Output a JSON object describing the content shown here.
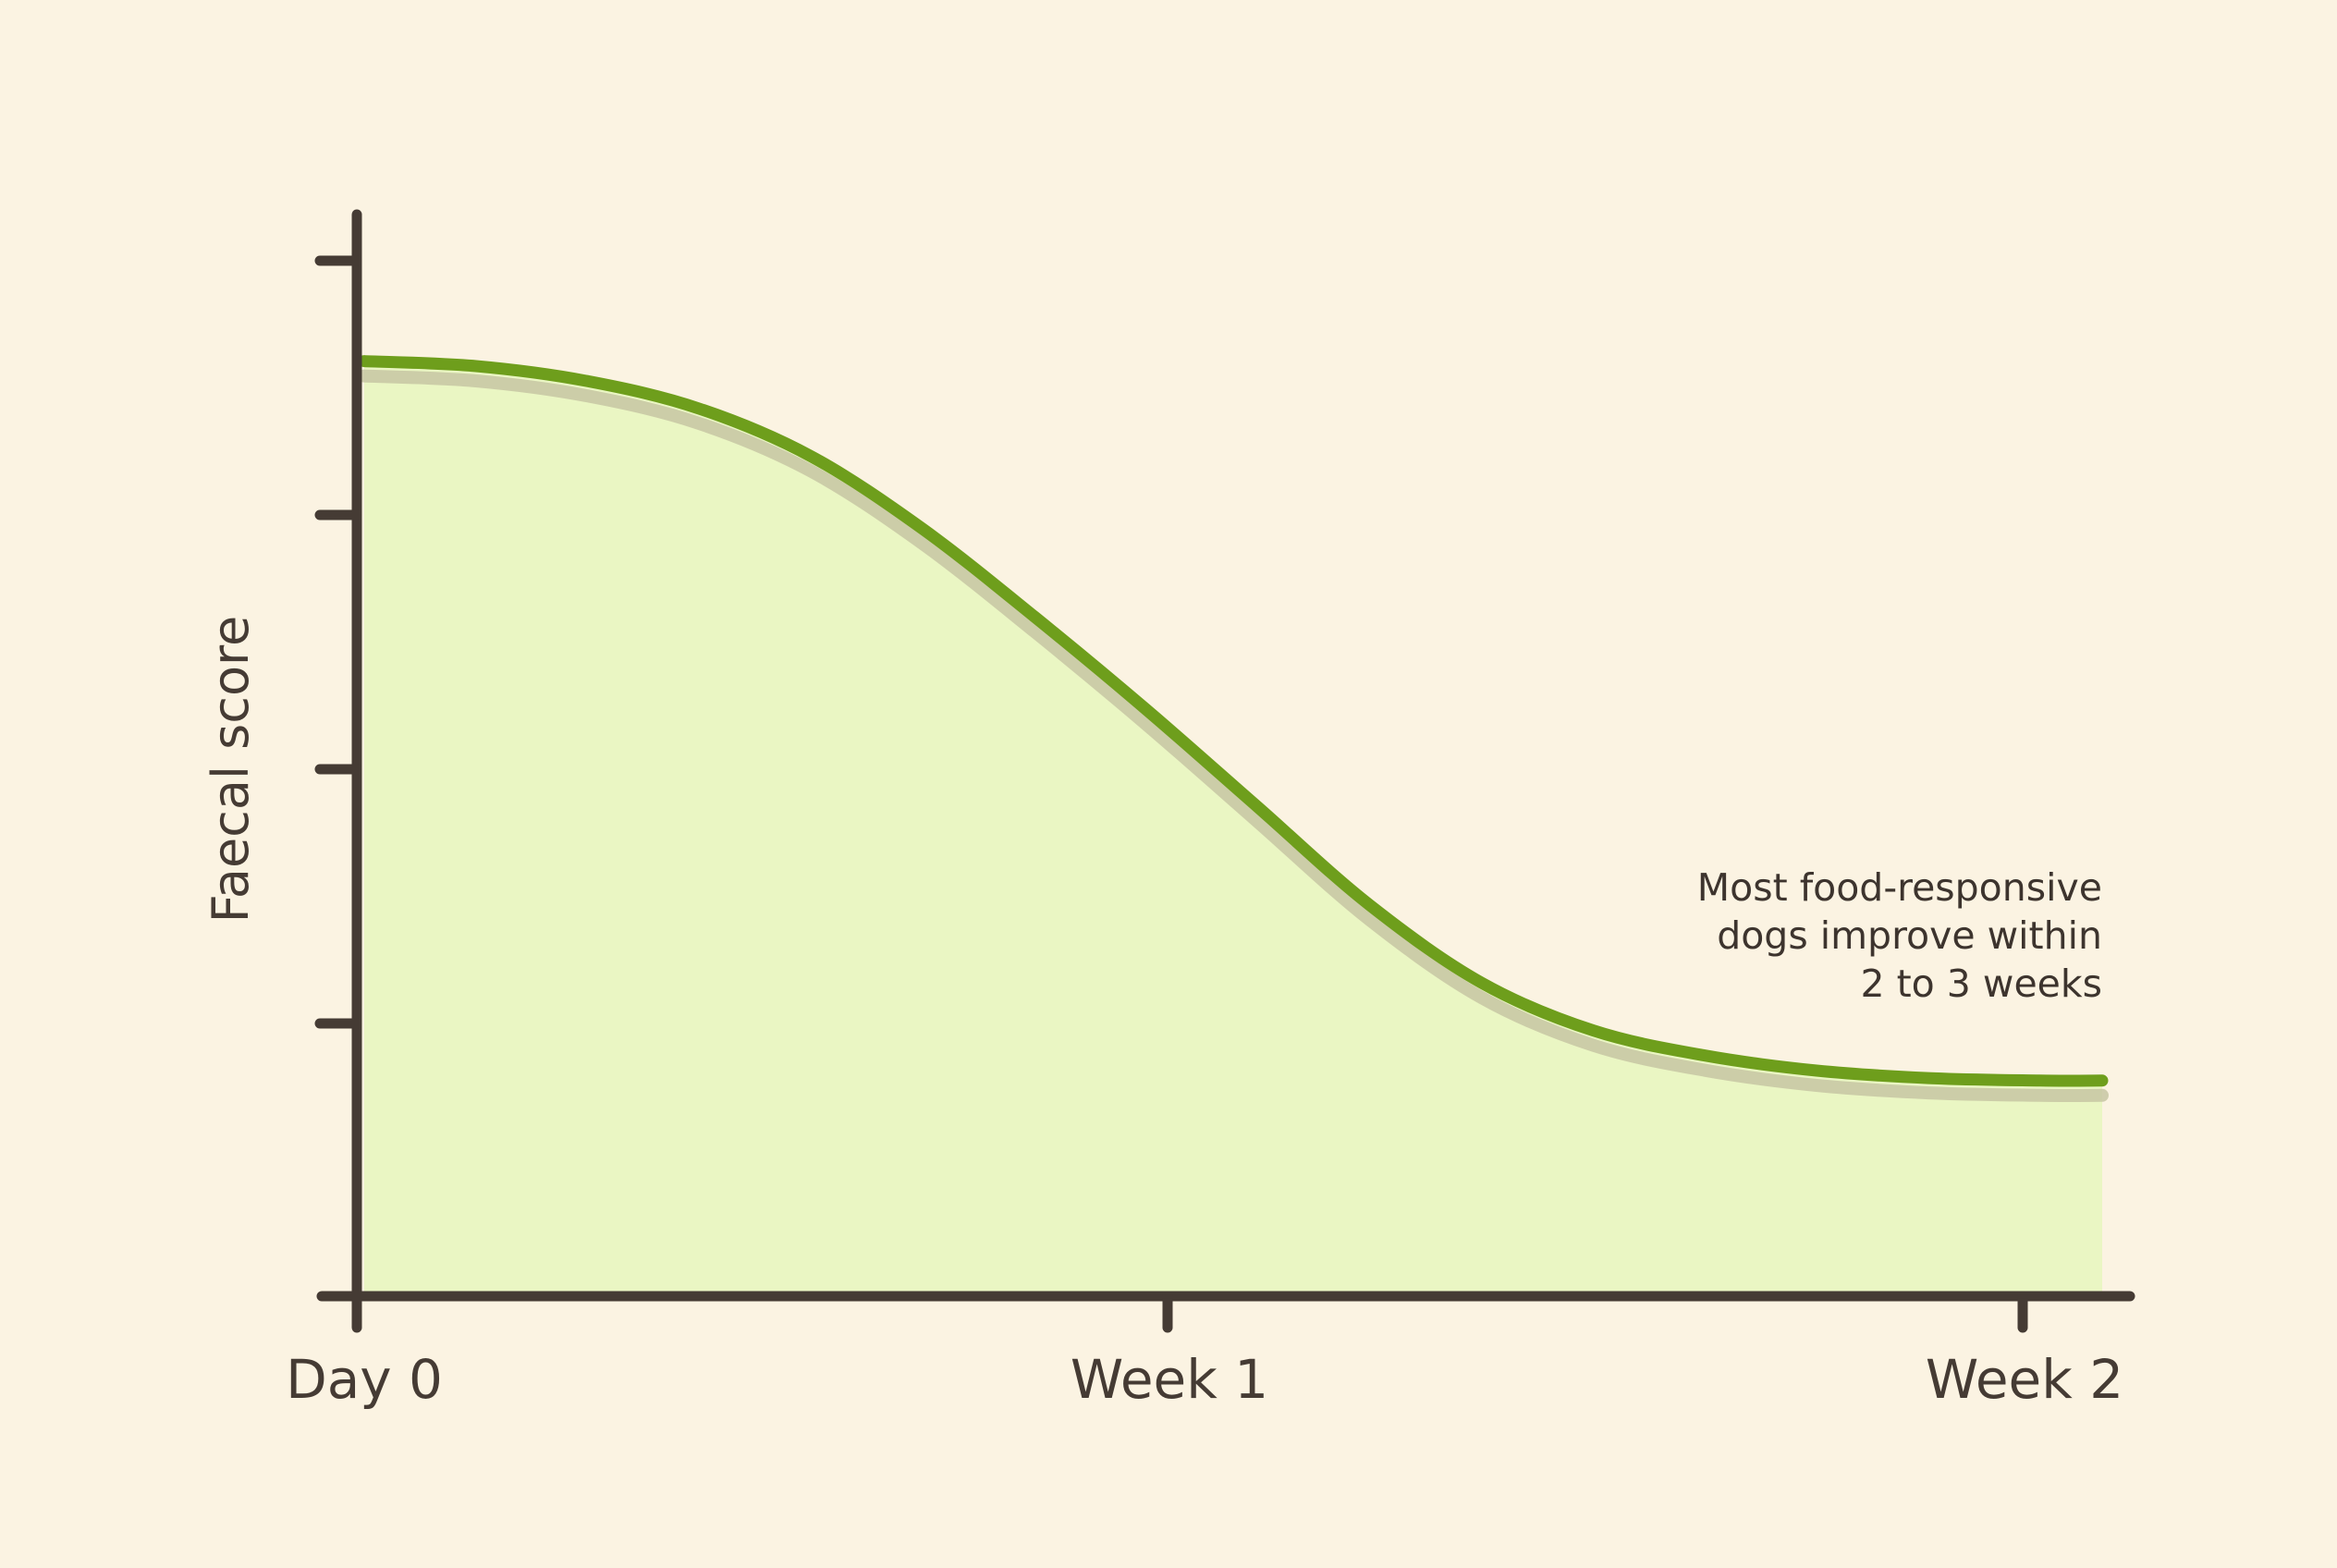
{
  "chart_data": {
    "type": "area",
    "title": "",
    "xlabel": "",
    "ylabel": "Faecal score",
    "x_ticks": [
      {
        "label": "Day 0",
        "day": 0
      },
      {
        "label": "Week 1",
        "day": 7
      },
      {
        "label": "Week 2",
        "day": 14
      }
    ],
    "y_ticks_count": 4,
    "y_tick_labels_shown": false,
    "xlim": [
      0,
      14
    ],
    "ylim": [
      0,
      4.3
    ],
    "series": [
      {
        "x": [
          0,
          0.9,
          1.8,
          2.7,
          3.6,
          4.5,
          5.4,
          6.3,
          7.2,
          8.1,
          9,
          9.9,
          10.8,
          11.7,
          12.6,
          13.5,
          14
        ],
        "y": [
          3.73,
          3.71,
          3.65,
          3.54,
          3.35,
          3.06,
          2.71,
          2.34,
          1.95,
          1.56,
          1.25,
          1.06,
          0.96,
          0.9,
          0.87,
          0.86,
          0.86
        ]
      }
    ],
    "annotation": {
      "lines": [
        "Most food-responsive",
        "dogs improve within",
        "2 to 3 weeks"
      ]
    },
    "grid": false,
    "legend": "none",
    "colors": {
      "background": "#fbf3e2",
      "line": "#6e9e1c",
      "fill": "#eaf6c3",
      "shadow": "#c7c5a3",
      "axis": "#453b34"
    }
  }
}
